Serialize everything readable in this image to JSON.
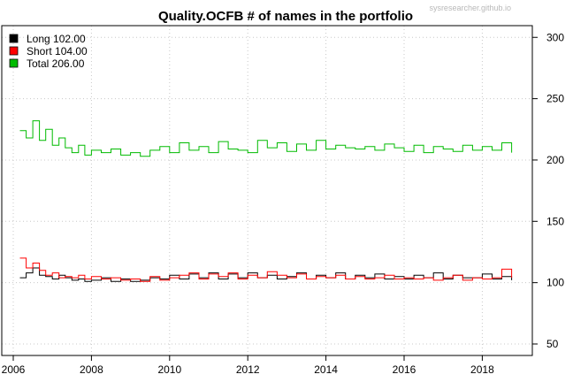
{
  "chart_data": {
    "type": "line",
    "title": "Quality.OCFB # of names in the portfolio",
    "watermark": "sysresearcher.github.io",
    "xlabel": "",
    "ylabel": "",
    "xlim": [
      2006,
      2018.75
    ],
    "ylim": [
      40,
      310
    ],
    "x_ticks": [
      "2006",
      "2008",
      "2010",
      "2012",
      "2014",
      "2016",
      "2018"
    ],
    "y_ticks": [
      "50",
      "100",
      "150",
      "200",
      "250",
      "300"
    ],
    "y_axis_side": "right",
    "grid": true,
    "legend_position": "top-left",
    "series": [
      {
        "name": "Long 102.00",
        "color": "#000000",
        "x": [
          2006.17,
          2006.33,
          2006.5,
          2006.67,
          2006.83,
          2007.0,
          2007.17,
          2007.33,
          2007.5,
          2007.67,
          2007.83,
          2008.0,
          2008.25,
          2008.5,
          2008.75,
          2009.0,
          2009.25,
          2009.5,
          2009.75,
          2010.0,
          2010.25,
          2010.5,
          2010.75,
          2011.0,
          2011.25,
          2011.5,
          2011.75,
          2012.0,
          2012.25,
          2012.5,
          2012.75,
          2013.0,
          2013.25,
          2013.5,
          2013.75,
          2014.0,
          2014.25,
          2014.5,
          2014.75,
          2015.0,
          2015.25,
          2015.5,
          2015.75,
          2016.0,
          2016.25,
          2016.5,
          2016.75,
          2017.0,
          2017.25,
          2017.5,
          2017.75,
          2018.0,
          2018.25,
          2018.5,
          2018.75
        ],
        "values": [
          104,
          108,
          112,
          106,
          105,
          103,
          106,
          104,
          102,
          103,
          101,
          102,
          104,
          101,
          103,
          101,
          102,
          104,
          103,
          106,
          103,
          107,
          104,
          108,
          103,
          107,
          104,
          108,
          104,
          106,
          103,
          105,
          108,
          103,
          106,
          104,
          108,
          103,
          106,
          104,
          107,
          103,
          105,
          103,
          106,
          104,
          108,
          103,
          106,
          104,
          104,
          107,
          103,
          105,
          102
        ]
      },
      {
        "name": "Short 104.00",
        "color": "#ff0000",
        "x": [
          2006.17,
          2006.33,
          2006.5,
          2006.67,
          2006.83,
          2007.0,
          2007.17,
          2007.33,
          2007.5,
          2007.67,
          2007.83,
          2008.0,
          2008.25,
          2008.5,
          2008.75,
          2009.0,
          2009.25,
          2009.5,
          2009.75,
          2010.0,
          2010.25,
          2010.5,
          2010.75,
          2011.0,
          2011.25,
          2011.5,
          2011.75,
          2012.0,
          2012.25,
          2012.5,
          2012.75,
          2013.0,
          2013.25,
          2013.5,
          2013.75,
          2014.0,
          2014.25,
          2014.5,
          2014.75,
          2015.0,
          2015.25,
          2015.5,
          2015.75,
          2016.0,
          2016.25,
          2016.5,
          2016.75,
          2017.0,
          2017.25,
          2017.5,
          2017.75,
          2018.0,
          2018.25,
          2018.5,
          2018.75
        ],
        "values": [
          120,
          112,
          116,
          110,
          106,
          108,
          104,
          105,
          104,
          106,
          103,
          105,
          103,
          104,
          102,
          103,
          101,
          105,
          102,
          104,
          106,
          108,
          103,
          107,
          105,
          108,
          103,
          106,
          104,
          109,
          106,
          104,
          107,
          103,
          105,
          104,
          106,
          103,
          105,
          103,
          104,
          106,
          103,
          104,
          103,
          104,
          102,
          104,
          106,
          102,
          104,
          103,
          104,
          111,
          104
        ]
      },
      {
        "name": "Total 206.00",
        "color": "#00bb00",
        "x": [
          2006.17,
          2006.33,
          2006.5,
          2006.67,
          2006.83,
          2007.0,
          2007.17,
          2007.33,
          2007.5,
          2007.67,
          2007.83,
          2008.0,
          2008.25,
          2008.5,
          2008.75,
          2009.0,
          2009.25,
          2009.5,
          2009.75,
          2010.0,
          2010.25,
          2010.5,
          2010.75,
          2011.0,
          2011.25,
          2011.5,
          2011.75,
          2012.0,
          2012.25,
          2012.5,
          2012.75,
          2013.0,
          2013.25,
          2013.5,
          2013.75,
          2014.0,
          2014.25,
          2014.5,
          2014.75,
          2015.0,
          2015.25,
          2015.5,
          2015.75,
          2016.0,
          2016.25,
          2016.5,
          2016.75,
          2017.0,
          2017.25,
          2017.5,
          2017.75,
          2018.0,
          2018.25,
          2018.5,
          2018.75
        ],
        "values": [
          224,
          218,
          232,
          216,
          225,
          212,
          218,
          210,
          206,
          212,
          204,
          208,
          206,
          209,
          204,
          206,
          203,
          208,
          211,
          206,
          214,
          208,
          211,
          206,
          215,
          209,
          208,
          206,
          216,
          210,
          214,
          207,
          213,
          208,
          216,
          209,
          212,
          210,
          209,
          211,
          208,
          213,
          210,
          207,
          212,
          206,
          211,
          209,
          207,
          212,
          208,
          211,
          208,
          214,
          206
        ]
      }
    ]
  }
}
